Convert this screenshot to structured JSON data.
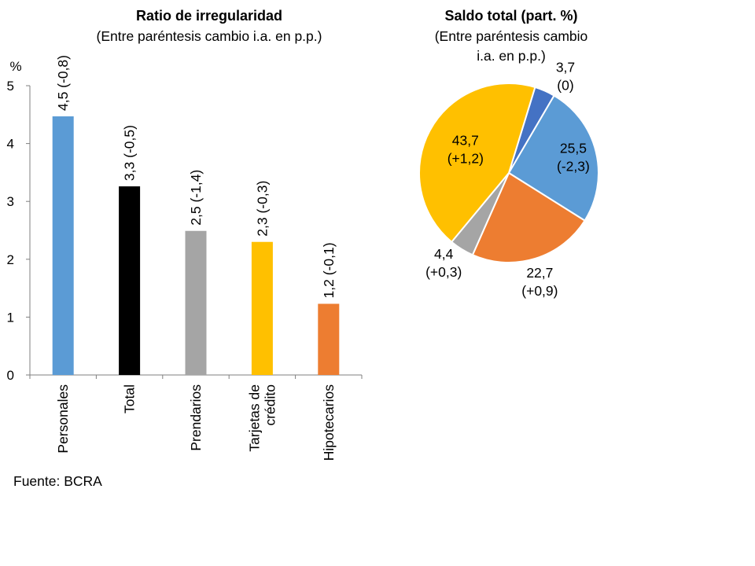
{
  "chart_data": [
    {
      "type": "bar",
      "title": "Ratio de irregularidad",
      "subtitle": "(Entre paréntesis cambio i.a. en p.p.)",
      "ylabel": "%",
      "ylim": [
        0,
        5
      ],
      "yticks": [
        "0",
        "1",
        "2",
        "3",
        "4",
        "5"
      ],
      "grid": false,
      "categories": [
        [
          "Personales"
        ],
        [
          "Total"
        ],
        [
          "Prendarios"
        ],
        [
          "Tarjetas de",
          "crédito"
        ],
        [
          "Hipotecarios"
        ]
      ],
      "values": [
        4.47,
        3.26,
        2.49,
        2.3,
        1.23
      ],
      "data_labels": [
        "4,5 (-0,8)",
        "3,3 (-0,5)",
        "2,5 (-1,4)",
        "2,3 (-0,3)",
        "1,2 (-0,1)"
      ],
      "colors": [
        "#5b9bd5",
        "#000000",
        "#a5a5a5",
        "#ffc000",
        "#ed7d31"
      ]
    },
    {
      "type": "pie",
      "title": "Saldo total (part. %)",
      "subtitle": [
        "(Entre paréntesis cambio",
        "i.a. en p.p.)"
      ],
      "values": [
        3.7,
        25.5,
        22.7,
        4.4,
        43.7
      ],
      "data_labels": [
        [
          "3,7",
          "(0)"
        ],
        [
          "25,5",
          "(-2,3)"
        ],
        [
          "22,7",
          "(+0,9)"
        ],
        [
          "4,4",
          "(+0,3)"
        ],
        [
          "43,7",
          "(+1,2)"
        ]
      ],
      "colors": [
        "#4472c4",
        "#5b9bd5",
        "#ed7d31",
        "#a5a5a5",
        "#ffc000"
      ]
    }
  ],
  "source": "Fuente: BCRA"
}
